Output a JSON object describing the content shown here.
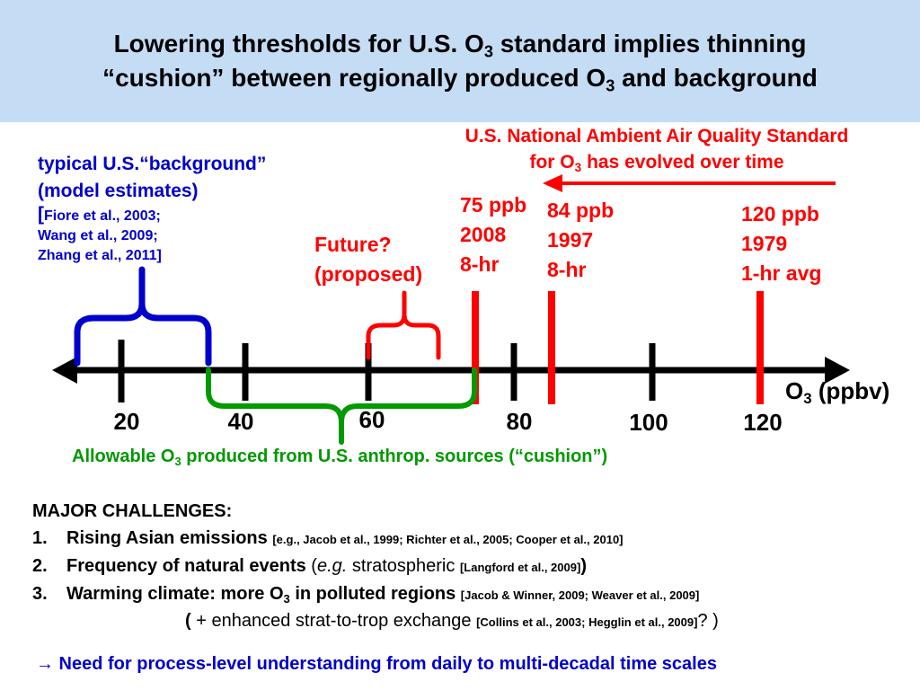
{
  "slide": {
    "title_line1_pre": "Lowering thresholds for U.S. O",
    "title_line1_sub": "3",
    "title_line1_post": " standard implies thinning",
    "title_line2_pre": "“cushion” between regionally produced O",
    "title_line2_sub": "3",
    "title_line2_post": " and background"
  },
  "naaqs": {
    "line1": "U.S. National Ambient Air Quality Standard",
    "line2_pre": "for O",
    "line2_sub": "3",
    "line2_post": " has evolved over time"
  },
  "background": {
    "line1": "typical U.S.“background”",
    "line2": "(model estimates)",
    "line3_bracket": "[",
    "line3": "Fiore et al., 2003;",
    "line4": "Wang et al., 2009;",
    "line5": "Zhang et al., 2011",
    "line5_bracket": "]"
  },
  "future": {
    "line1": "Future?",
    "line2": "(proposed)"
  },
  "standards": [
    {
      "value": "75 ppb",
      "year": "2008",
      "avg": "8-hr"
    },
    {
      "value": "84 ppb",
      "year": "1997",
      "avg": "8-hr"
    },
    {
      "value": "120 ppb",
      "year": "1979",
      "avg": "1-hr avg"
    }
  ],
  "axis": {
    "label_pre": "O",
    "label_sub": "3",
    "label_post": " (ppbv)",
    "ticks": [
      "20",
      "40",
      "60",
      "80",
      "100",
      "120"
    ]
  },
  "cushion": {
    "pre": "Allowable O",
    "sub": "3",
    "post": " produced from U.S. anthrop. sources (“cushion”)"
  },
  "challenges": {
    "heading": "MAJOR CHALLENGES:",
    "items": [
      {
        "num": "1.",
        "text": "Rising Asian emissions",
        "cite": "[e.g., Jacob et al., 1999; Richter et al., 2005; Cooper et al., 2010]"
      },
      {
        "num": "2.",
        "text": "Frequency of natural events",
        "paren_open": " (",
        "eg": "e.g.",
        "extra": " stratospheric ",
        "cite": "[Langford et al., 2009]",
        "paren_close": ")"
      },
      {
        "num": "3.",
        "text_pre": "Warming climate: more O",
        "text_sub": "3",
        "text_post": " in polluted regions",
        "cite": "[Jacob & Winner, 2009; Weaver et al., 2009]"
      }
    ],
    "extra_line": {
      "open": "(",
      "text": " + enhanced strat-to-trop exchange ",
      "cite": "[Collins et al., 2003; Hegglin et al., 2009]",
      "close": "? )"
    }
  },
  "conclusion": {
    "arrow": "→",
    "text": " Need for process-level understanding from daily to multi-decadal time scales"
  },
  "colors": {
    "red": "#ff0000",
    "blue": "#0000cc",
    "green": "#009900",
    "title_band": "#c5dcf5"
  }
}
